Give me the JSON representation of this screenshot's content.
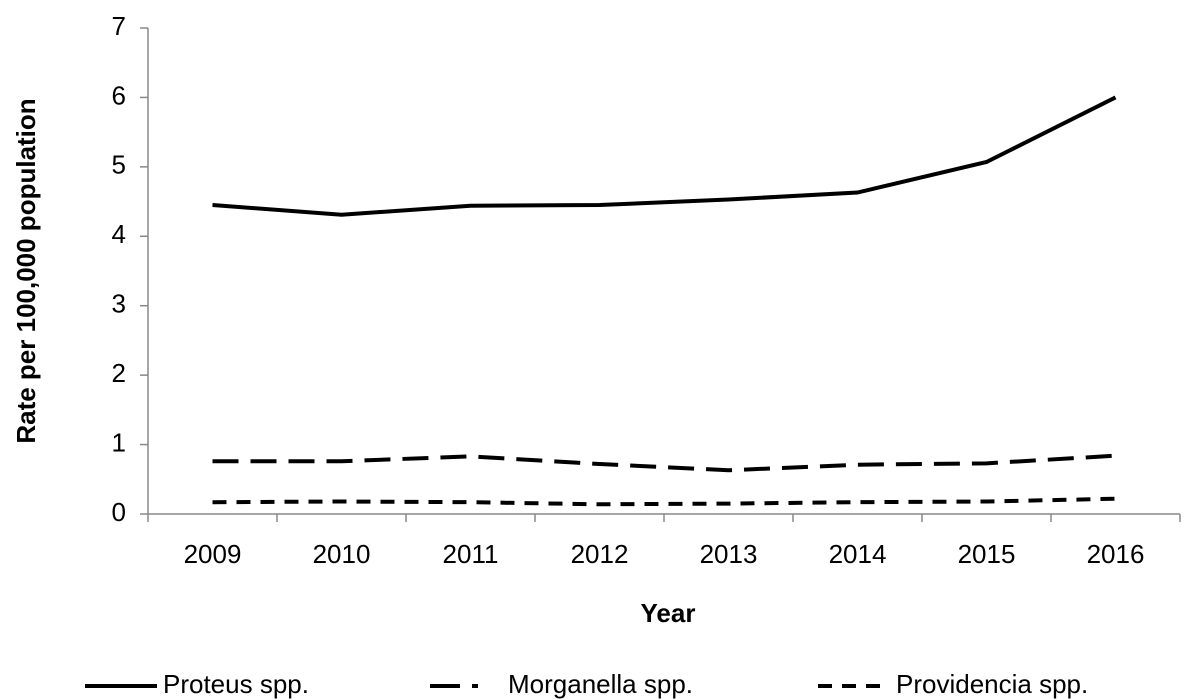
{
  "chart_data": {
    "type": "line",
    "xlabel": "Year",
    "ylabel": "Rate per 100,000 population",
    "categories": [
      "2009",
      "2010",
      "2011",
      "2012",
      "2013",
      "2014",
      "2015",
      "2016"
    ],
    "series": [
      {
        "name": "Proteus spp.",
        "color": "#000000",
        "dash": "solid",
        "values": [
          4.45,
          4.31,
          4.44,
          4.45,
          4.53,
          4.63,
          5.07,
          6.0
        ]
      },
      {
        "name": "Morganella spp.",
        "color": "#000000",
        "dash": "long-dash",
        "values": [
          0.76,
          0.76,
          0.83,
          0.72,
          0.63,
          0.71,
          0.73,
          0.84
        ]
      },
      {
        "name": "Providencia spp.",
        "color": "#000000",
        "dash": "short-dash",
        "values": [
          0.17,
          0.18,
          0.17,
          0.14,
          0.15,
          0.17,
          0.18,
          0.22
        ]
      }
    ],
    "ylim": [
      0,
      7
    ],
    "yticks": [
      0,
      1,
      2,
      3,
      4,
      5,
      6,
      7
    ],
    "grid": false,
    "legend": "bottom"
  }
}
